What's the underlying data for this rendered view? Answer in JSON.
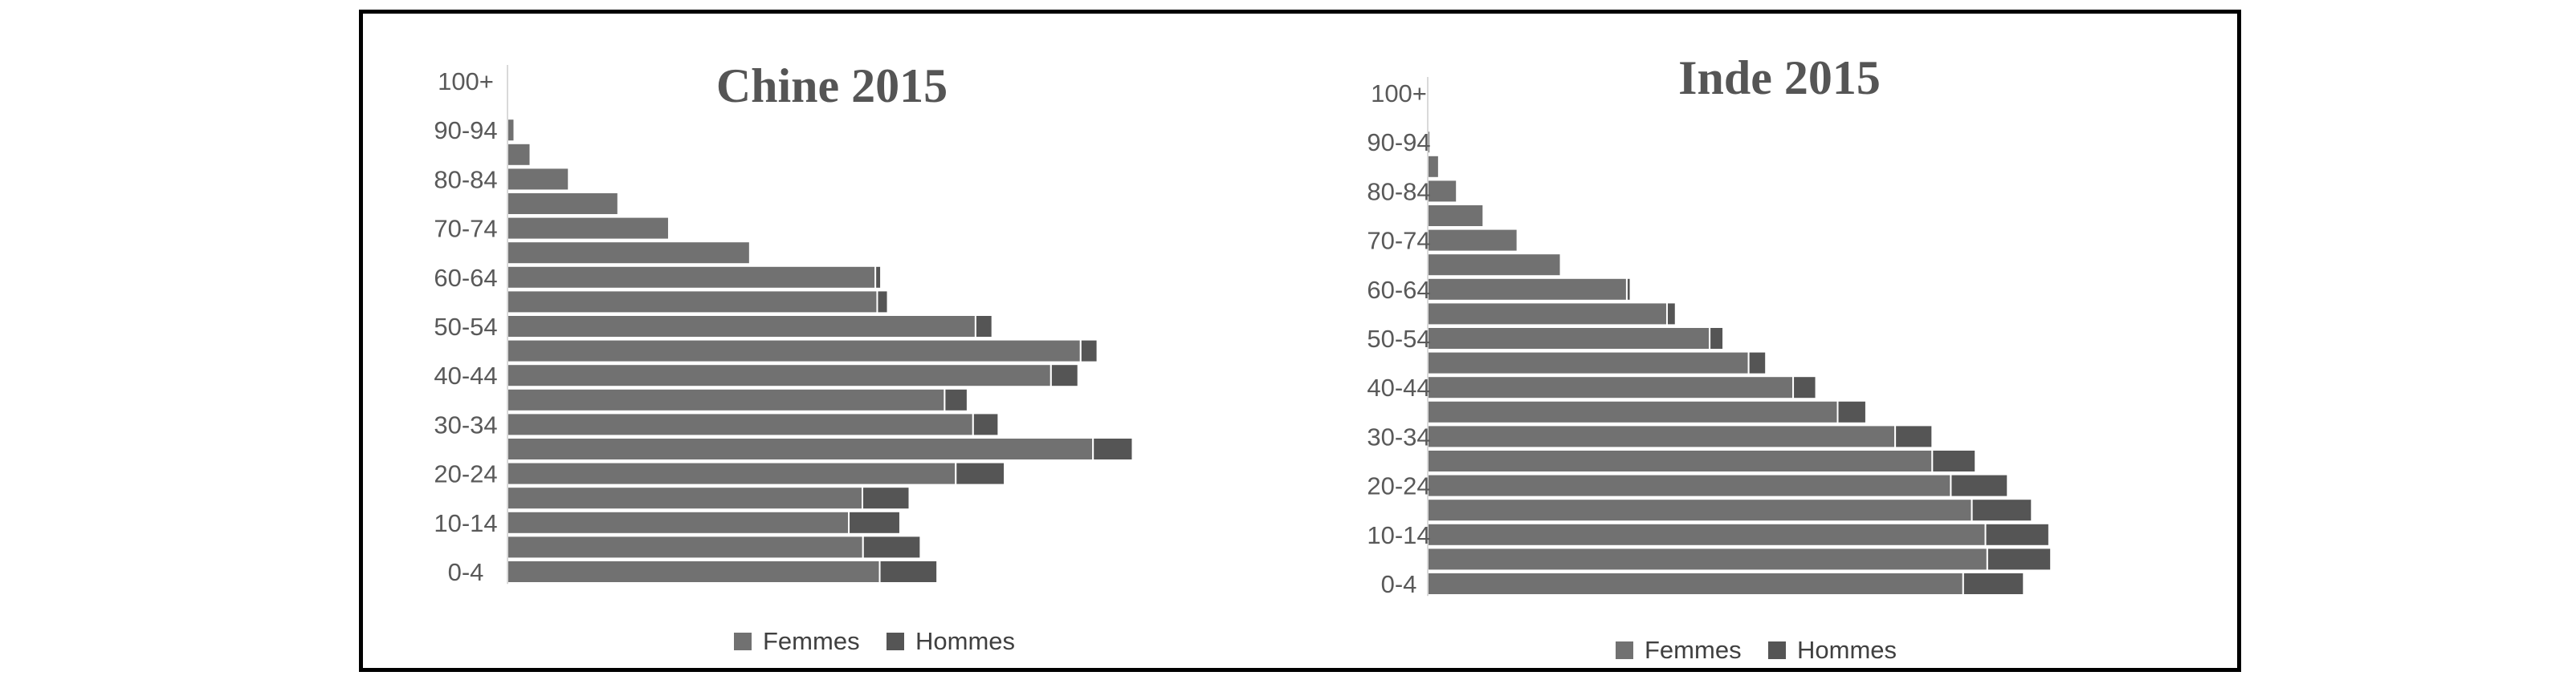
{
  "colors": {
    "femmes": "#717171",
    "hommes": "#555555",
    "axis": "#d9d9d9",
    "text": "#595959",
    "title": "#555555"
  },
  "chart_data": [
    {
      "type": "bar",
      "orientation": "horizontal",
      "stacked": true,
      "title": "Chine 2015",
      "categories": [
        "0-4",
        "5-9",
        "10-14",
        "15-19",
        "20-24",
        "25-29",
        "30-34",
        "35-39",
        "40-44",
        "45-49",
        "50-54",
        "55-59",
        "60-64",
        "65-69",
        "70-74",
        "75-79",
        "80-84",
        "85-89",
        "90-94",
        "95-99",
        "100+"
      ],
      "tick_labels": [
        "0-4",
        "10-14",
        "20-24",
        "30-34",
        "40-44",
        "50-54",
        "60-64",
        "70-74",
        "80-84",
        "90-94",
        "100+"
      ],
      "series": [
        {
          "name": "Femmes",
          "values": [
            60.2,
            57.5,
            55.2,
            57.4,
            72.5,
            94.7,
            75.3,
            70.7,
            87.9,
            92.7,
            75.7,
            59.8,
            59.5,
            39.2,
            26.1,
            17.9,
            9.9,
            3.7,
            1.1,
            0.2,
            0.0
          ]
        },
        {
          "name": "Hommes",
          "values": [
            9.3,
            9.3,
            8.3,
            7.6,
            7.9,
            6.4,
            4.1,
            3.7,
            4.4,
            2.7,
            2.7,
            1.7,
            0.9,
            0.0,
            0.0,
            0.0,
            0.0,
            0.0,
            0.0,
            0.0,
            0.0
          ]
        }
      ],
      "xlim": [
        0,
        110
      ],
      "legend_position": "bottom"
    },
    {
      "type": "bar",
      "orientation": "horizontal",
      "stacked": true,
      "title": "Inde 2015",
      "categories": [
        "0-4",
        "5-9",
        "10-14",
        "15-19",
        "20-24",
        "25-29",
        "30-34",
        "35-39",
        "40-44",
        "45-49",
        "50-54",
        "55-59",
        "60-64",
        "65-69",
        "70-74",
        "75-79",
        "80-84",
        "85-89",
        "90-94",
        "95-99",
        "100+"
      ],
      "tick_labels": [
        "0-4",
        "10-14",
        "20-24",
        "30-34",
        "40-44",
        "50-54",
        "60-64",
        "70-74",
        "80-84",
        "90-94",
        "100+"
      ],
      "series": [
        {
          "name": "Femmes",
          "values": [
            86.6,
            90.5,
            90.2,
            88.0,
            84.6,
            81.6,
            75.6,
            66.3,
            59.1,
            51.9,
            45.6,
            38.7,
            32.2,
            21.5,
            14.5,
            9.0,
            4.7,
            1.8,
            0.4,
            0.1,
            0.0
          ]
        },
        {
          "name": "Hommes",
          "values": [
            9.8,
            10.3,
            10.3,
            9.7,
            9.2,
            7.0,
            6.0,
            4.6,
            3.7,
            2.8,
            2.2,
            1.4,
            0.6,
            0.0,
            0.0,
            0.0,
            0.0,
            0.0,
            0.0,
            0.0,
            0.0
          ]
        }
      ],
      "xlim": [
        0,
        110
      ],
      "legend_position": "bottom"
    }
  ]
}
